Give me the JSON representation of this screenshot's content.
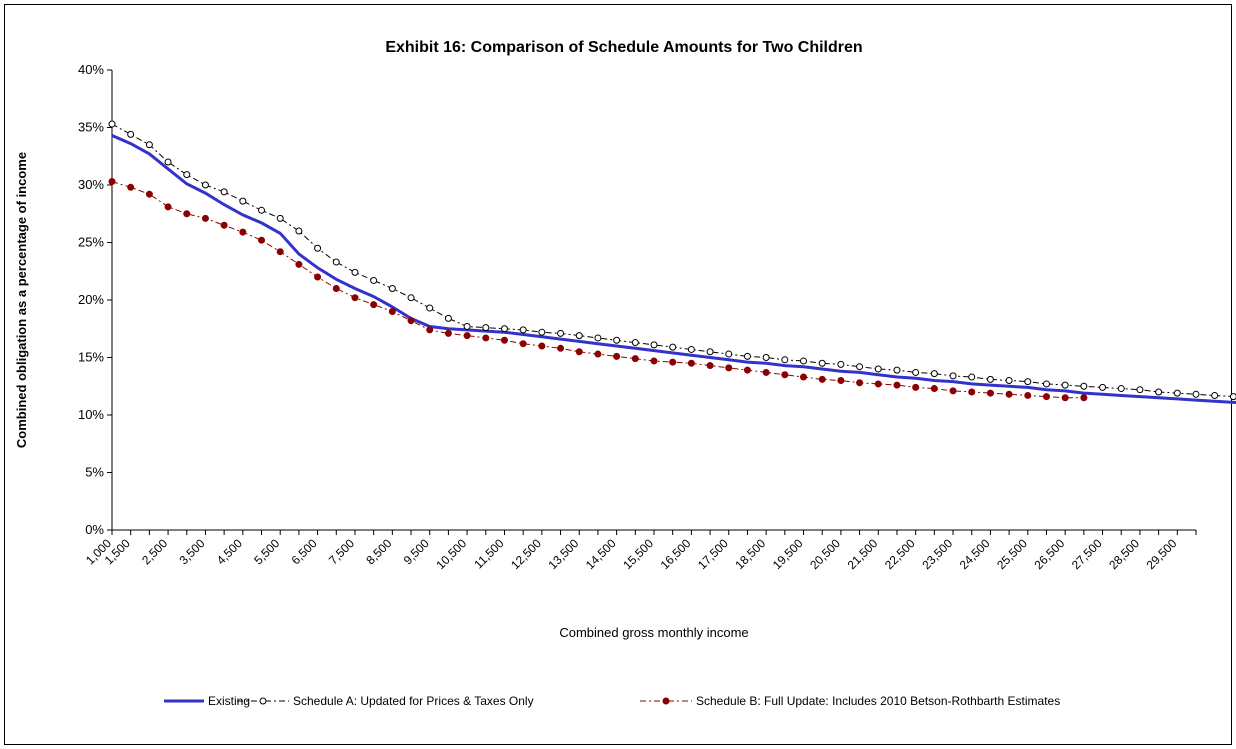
{
  "chart_data": {
    "type": "line",
    "title": "Exhibit 16:  Comparison of Schedule Amounts for Two Children",
    "xlabel": "Combined gross monthly income",
    "ylabel": "Combined obligation as a percentage of income",
    "ylim": [
      0,
      0.4
    ],
    "yticks": [
      "0%",
      "5%",
      "10%",
      "15%",
      "20%",
      "25%",
      "30%",
      "35%",
      "40%"
    ],
    "x_step": 500,
    "x_start": 1000,
    "x_end": 30000,
    "xtick_labels": [
      "1,000",
      "1,500",
      "2,500",
      "3,500",
      "4,500",
      "5,500",
      "6,500",
      "7,500",
      "8,500",
      "9,500",
      "10,500",
      "11,500",
      "12,500",
      "13,500",
      "14,500",
      "15,500",
      "16,500",
      "17,500",
      "18,500",
      "19,500",
      "20,500",
      "21,500",
      "22,500",
      "23,500",
      "24,500",
      "25,500",
      "26,500",
      "27,500",
      "28,500",
      "29,500"
    ],
    "grid": false,
    "legend_position": "bottom",
    "series": [
      {
        "name": "Existing",
        "color": "#3333cc",
        "style": "solid",
        "values": [
          0.343,
          0.336,
          0.327,
          0.314,
          0.301,
          0.293,
          0.283,
          0.274,
          0.267,
          0.258,
          0.24,
          0.228,
          0.218,
          0.21,
          0.203,
          0.194,
          0.184,
          0.177,
          0.175,
          0.174,
          0.173,
          0.172,
          0.17,
          0.168,
          0.166,
          0.164,
          0.162,
          0.16,
          0.158,
          0.156,
          0.154,
          0.152,
          0.15,
          0.148,
          0.146,
          0.145,
          0.143,
          0.142,
          0.14,
          0.138,
          0.137,
          0.135,
          0.133,
          0.132,
          0.13,
          0.129,
          0.127,
          0.126,
          0.125,
          0.124,
          0.122,
          0.121,
          0.119,
          0.118,
          0.117,
          0.116,
          0.115,
          0.114,
          0.113,
          0.112,
          0.111,
          0.11,
          0.109,
          0.108,
          0.107,
          0.106,
          0.105,
          0.104,
          0.103,
          0.102,
          0.101
        ]
      },
      {
        "name": "Schedule A:  Updated for Prices & Taxes Only",
        "color": "#000000",
        "style": "dash-dot-open-circle",
        "values": [
          0.353,
          0.344,
          0.335,
          0.32,
          0.309,
          0.3,
          0.294,
          0.286,
          0.278,
          0.271,
          0.26,
          0.245,
          0.233,
          0.224,
          0.217,
          0.21,
          0.202,
          0.193,
          0.184,
          0.177,
          0.176,
          0.175,
          0.174,
          0.172,
          0.171,
          0.169,
          0.167,
          0.165,
          0.163,
          0.161,
          0.159,
          0.157,
          0.155,
          0.153,
          0.151,
          0.15,
          0.148,
          0.147,
          0.145,
          0.144,
          0.142,
          0.14,
          0.139,
          0.137,
          0.136,
          0.134,
          0.133,
          0.131,
          0.13,
          0.129,
          0.127,
          0.126,
          0.125,
          0.124,
          0.123,
          0.122,
          0.12,
          0.119,
          0.118,
          0.117,
          0.116,
          0.115,
          0.114,
          0.113,
          0.112,
          0.111,
          0.11,
          0.109
        ]
      },
      {
        "name": "Schedule B:  Full Update: Includes 2010 Betson-Rothbarth Estimates",
        "color": "#8b0000",
        "style": "dash-dot-filled-circle",
        "values": [
          0.303,
          0.298,
          0.292,
          0.281,
          0.275,
          0.271,
          0.265,
          0.259,
          0.252,
          0.242,
          0.231,
          0.22,
          0.21,
          0.202,
          0.196,
          0.19,
          0.182,
          0.174,
          0.171,
          0.169,
          0.167,
          0.165,
          0.162,
          0.16,
          0.158,
          0.155,
          0.153,
          0.151,
          0.149,
          0.147,
          0.146,
          0.145,
          0.143,
          0.141,
          0.139,
          0.137,
          0.135,
          0.133,
          0.131,
          0.13,
          0.128,
          0.127,
          0.126,
          0.124,
          0.123,
          0.121,
          0.12,
          0.119,
          0.118,
          0.117,
          0.116,
          0.115,
          0.115
        ]
      }
    ]
  }
}
